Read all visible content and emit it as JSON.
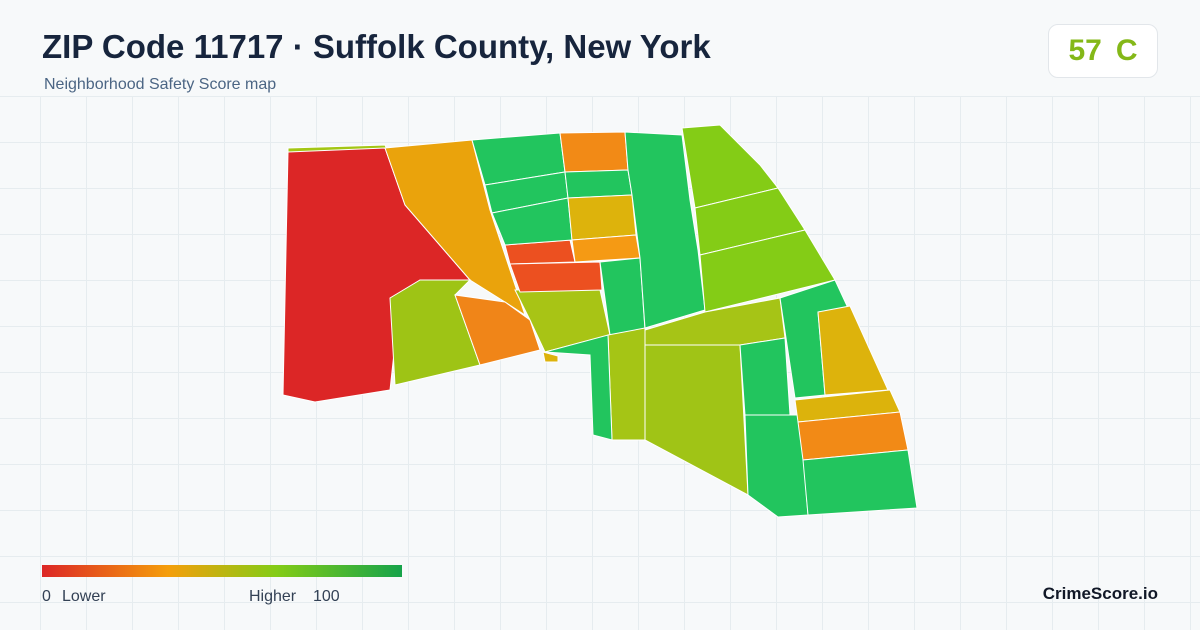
{
  "header": {
    "title": "ZIP Code 11717 · Suffolk County, New York",
    "subtitle": "Neighborhood Safety Score map"
  },
  "score": {
    "value": 57,
    "grade": "C"
  },
  "legend": {
    "min": 0,
    "min_label": "Lower",
    "max_label": "Higher",
    "max": 100
  },
  "brand": "CrimeScore.io"
}
